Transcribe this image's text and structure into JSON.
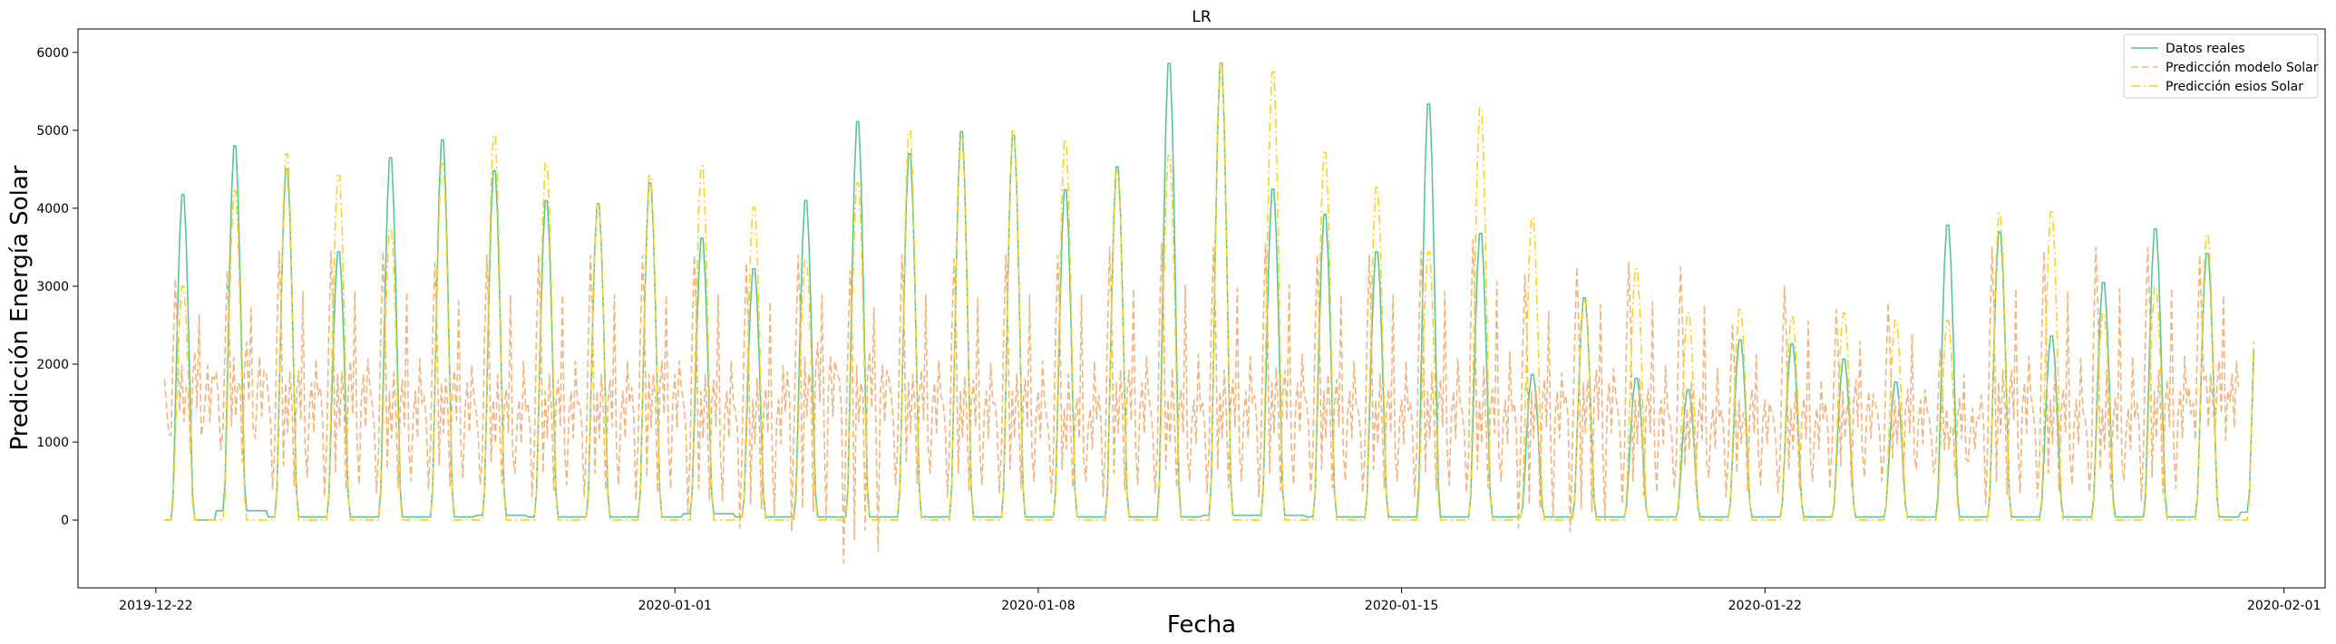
{
  "chart_data": {
    "type": "line",
    "title": "LR",
    "xlabel": "Fecha",
    "ylabel": "Predicción Energía Solar",
    "x_start": "2019-12-22T04:00",
    "step_hours": 1,
    "xlim": [
      "2019-12-20T12:00",
      "2020-02-01T19:00"
    ],
    "ylim": [
      -870,
      6300
    ],
    "yticks": [
      0,
      1000,
      2000,
      3000,
      4000,
      5000,
      6000
    ],
    "xticks": [
      "2019-12-22",
      "2020-01-01",
      "2020-01-08",
      "2020-01-15",
      "2020-01-22",
      "2020-02-01"
    ],
    "grid": false,
    "legend_position": "top-right",
    "series": [
      {
        "name": "Datos reales",
        "color": "#5cc39a",
        "style": "solid",
        "daily_peaks": [
          4250,
          4880,
          4580,
          3500,
          4730,
          4960,
          4560,
          4170,
          4130,
          4400,
          3680,
          3280,
          4170,
          5200,
          4780,
          5070,
          5020,
          4310,
          4610,
          5960,
          5960,
          4320,
          3990,
          3500,
          5430,
          3740,
          1900,
          2900,
          1850,
          1700,
          2350,
          2300,
          2100,
          1800,
          3850,
          3760,
          2400,
          3100,
          3800,
          3480
        ],
        "night_values": [
          0,
          120,
          40,
          40,
          40,
          40,
          60,
          40,
          40,
          40,
          80,
          40,
          40,
          40,
          40,
          40,
          40,
          40,
          40,
          40,
          60,
          60,
          40,
          40,
          40,
          40,
          40,
          40,
          40,
          40,
          40,
          40,
          40,
          40,
          40,
          40,
          40,
          40,
          40,
          40,
          100
        ]
      },
      {
        "name": "Predicción modelo Solar",
        "color": "#f0b47f",
        "style": "dashed",
        "daily_peaks": [
          3100,
          3200,
          3450,
          3450,
          3450,
          3300,
          3400,
          3400,
          3400,
          3400,
          3400,
          3300,
          3400,
          3200,
          3400,
          3350,
          3400,
          3400,
          3500,
          3550,
          3500,
          3550,
          3400,
          3400,
          3450,
          3600,
          3150,
          3250,
          3300,
          3250,
          2500,
          3000,
          2700,
          2800,
          2200,
          3500,
          3450,
          3500,
          3500,
          3400
        ],
        "daily_lows": [
          1100,
          900,
          400,
          300,
          350,
          400,
          450,
          300,
          300,
          250,
          100,
          -100,
          -150,
          -550,
          450,
          300,
          350,
          350,
          300,
          350,
          350,
          300,
          350,
          350,
          300,
          350,
          -100,
          -150,
          200,
          400,
          300,
          350,
          400,
          500,
          600,
          200,
          300,
          350,
          250,
          1500
        ],
        "mid_values": [
          1800,
          1900,
          1600,
          1700,
          1500,
          1600,
          1400,
          1500,
          1500,
          1700,
          1500,
          1400,
          1900,
          1800,
          1600,
          1500,
          1500,
          1300,
          1600,
          1400,
          1500,
          1600,
          1500,
          1400,
          1500,
          1400,
          1500,
          1600,
          1400,
          1300,
          1400,
          1300,
          1500,
          1400,
          1300,
          1600,
          1400,
          1300,
          1500,
          1700
        ]
      },
      {
        "name": "Predicción esios Solar",
        "color": "#ffd11a",
        "style": "dashdot",
        "daily_peaks": [
          3050,
          4300,
          4780,
          4500,
          3800,
          4650,
          5020,
          4660,
          4120,
          4500,
          4620,
          4080,
          3400,
          4400,
          5080,
          4980,
          5080,
          4960,
          4540,
          4760,
          5990,
          5850,
          4800,
          4340,
          3500,
          5380,
          3950,
          2850,
          3280,
          2700,
          2750,
          2650,
          2700,
          2600,
          2600,
          4000,
          4020,
          2700,
          3050,
          3730
        ],
        "night_values": [
          0,
          0,
          0,
          0,
          0,
          0,
          0,
          0,
          0,
          0,
          0,
          0,
          0,
          0,
          0,
          0,
          0,
          0,
          0,
          0,
          0,
          0,
          0,
          0,
          0,
          0,
          0,
          0,
          0,
          0,
          0,
          0,
          0,
          0,
          0,
          0,
          0,
          0,
          0,
          0,
          0
        ]
      }
    ]
  }
}
